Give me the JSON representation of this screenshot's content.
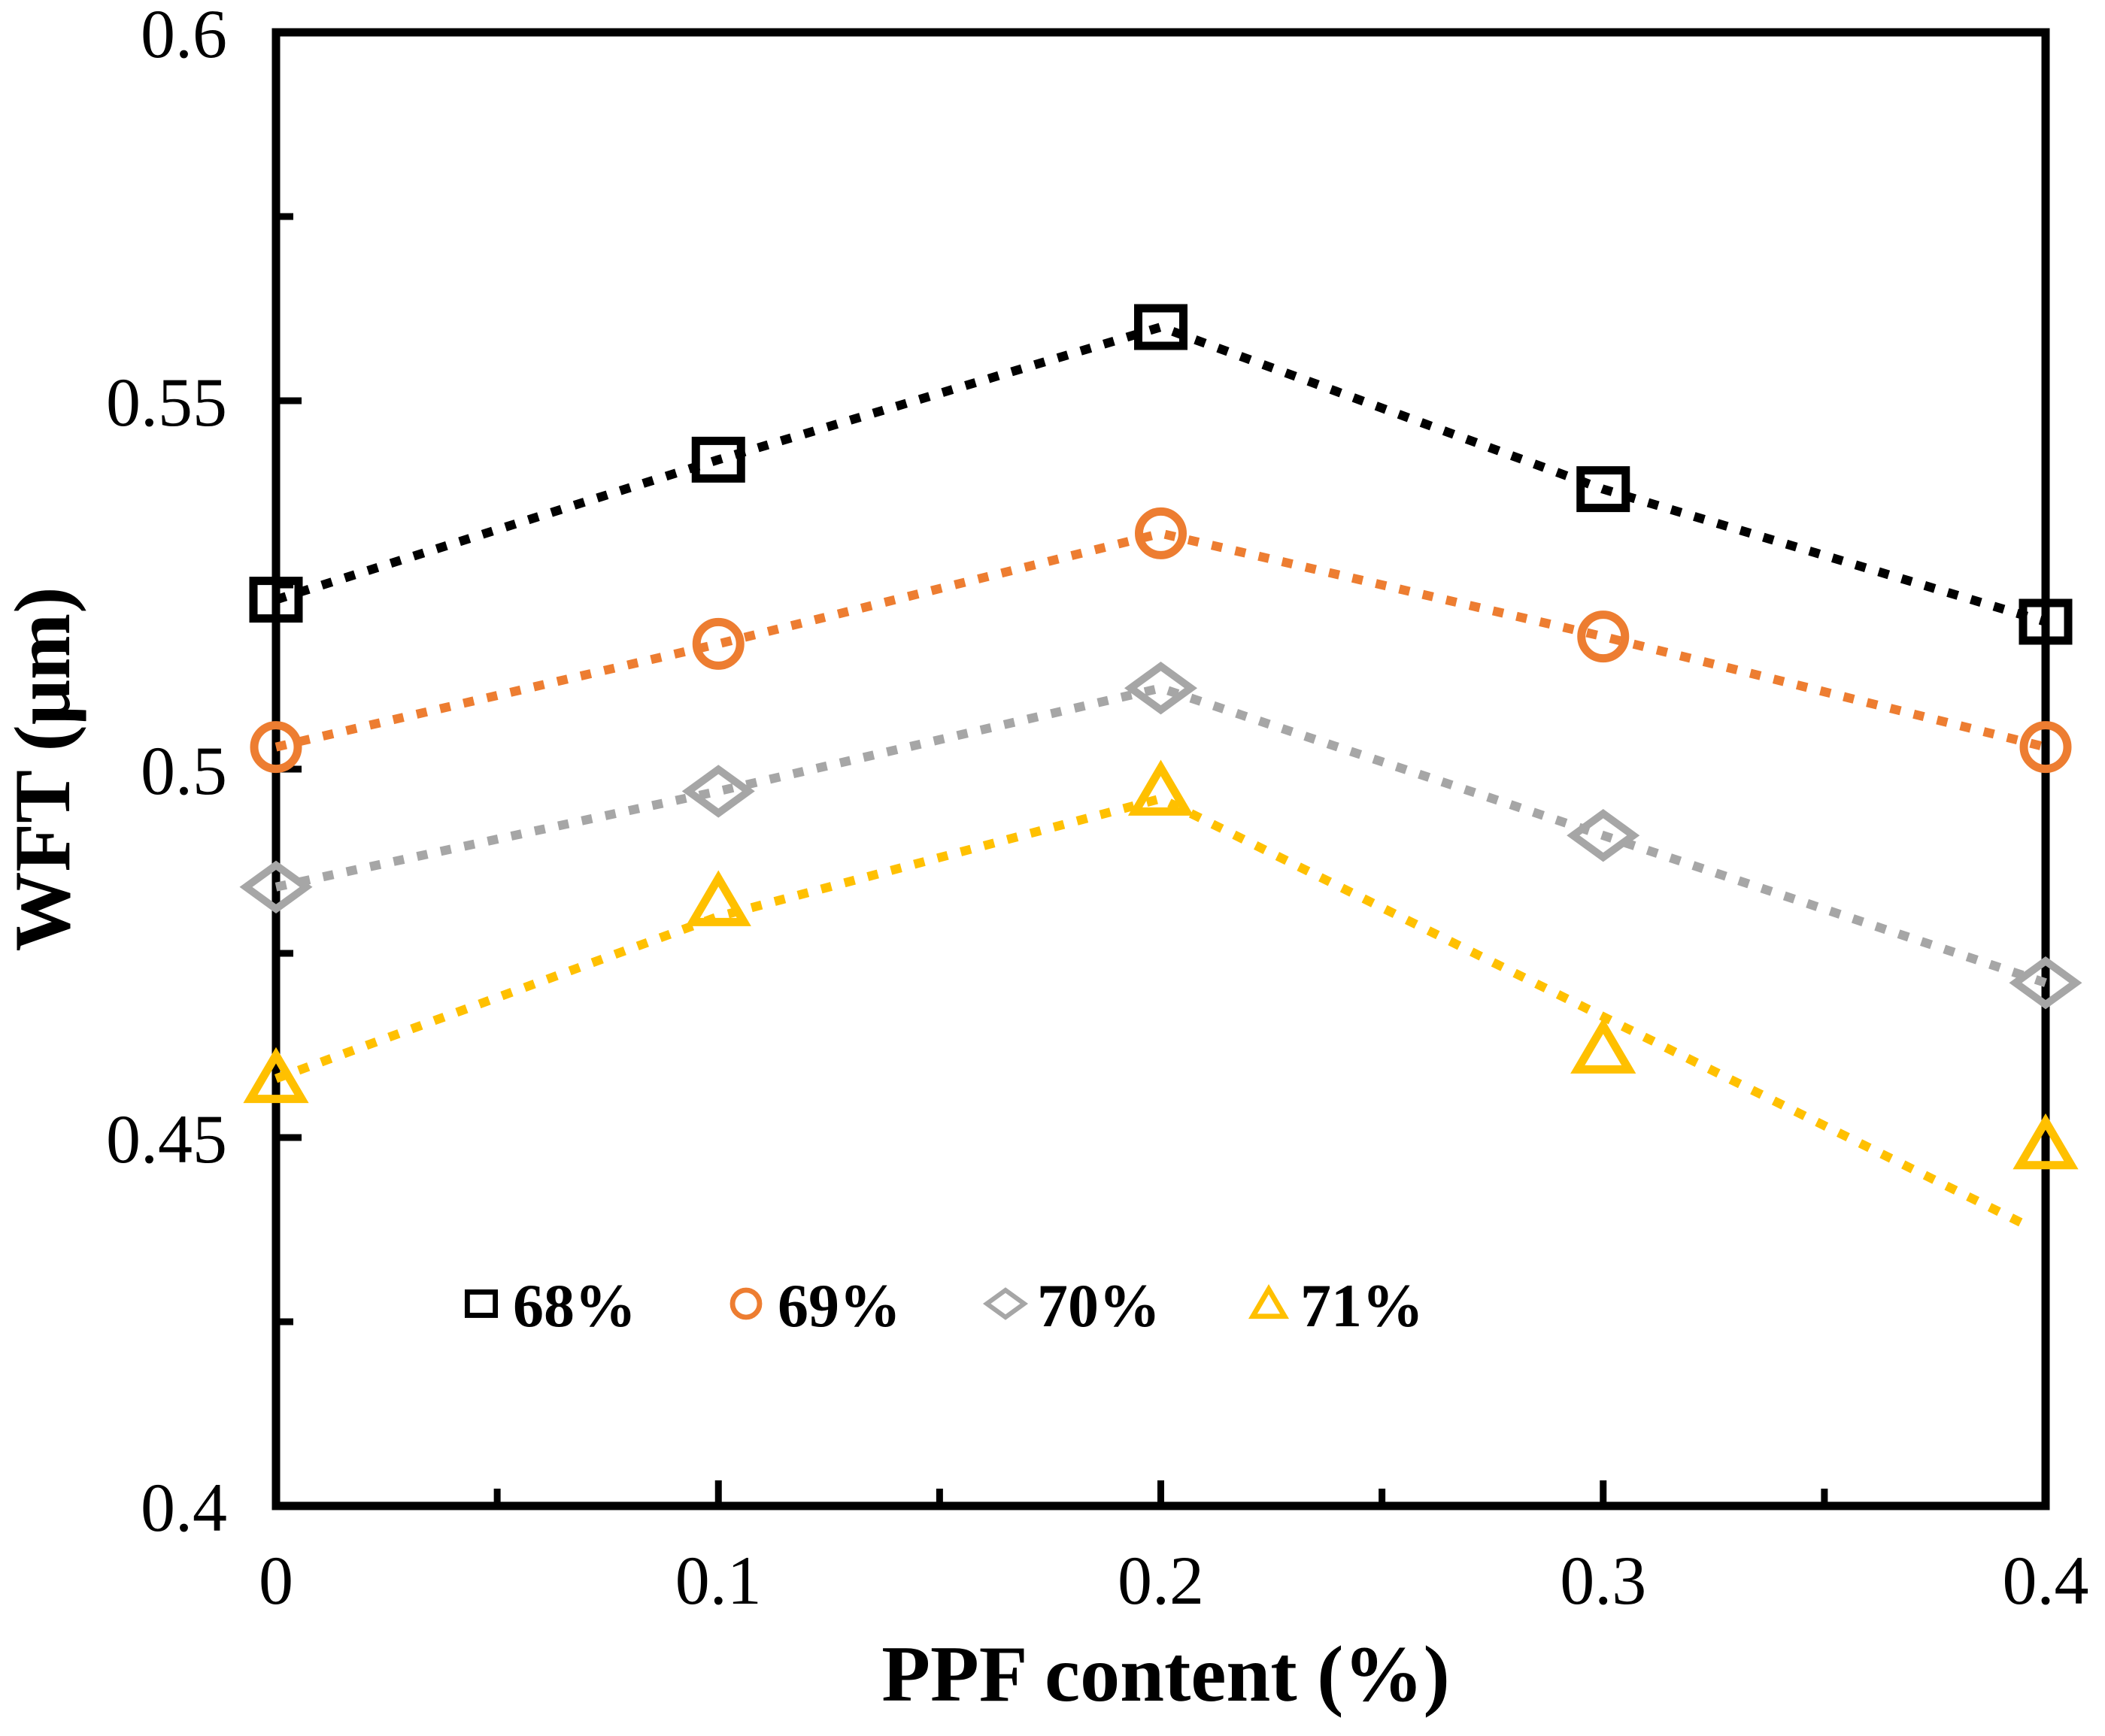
{
  "figure": {
    "background": "#ffffff",
    "border_color": "#000000"
  },
  "chart_data": {
    "type": "scatter-line",
    "title": "",
    "xlabel": "PPF content (%)",
    "ylabel": "WFT (μm)",
    "xlim": [
      0,
      0.4
    ],
    "ylim": [
      0.4,
      0.6
    ],
    "grid": false,
    "legend_position": "inside-bottom-left",
    "x": [
      0,
      0.1,
      0.2,
      0.3,
      0.4
    ],
    "x_major_ticks": [
      0,
      0.1,
      0.2,
      0.3,
      0.4
    ],
    "x_minor_ticks": [
      0.05,
      0.15,
      0.25,
      0.35
    ],
    "x_tick_labels": [
      "0",
      "0.1",
      "0.2",
      "0.3",
      "0.4"
    ],
    "y_major_ticks": [
      0.6,
      0.55,
      0.5,
      0.45,
      0.4
    ],
    "y_minor_ticks": [
      0.575,
      0.525,
      0.475,
      0.425
    ],
    "y_tick_labels": [
      "0.6",
      "0.55",
      "0.5",
      "0.45",
      "0.4"
    ],
    "line_style": "dotted",
    "series": [
      {
        "name": "68%",
        "marker": "square",
        "color": "#000000",
        "values": [
          0.523,
          0.542,
          0.56,
          0.538,
          0.52
        ]
      },
      {
        "name": "69%",
        "marker": "circle",
        "color": "#ED7D31",
        "values": [
          0.503,
          0.517,
          0.532,
          0.518,
          0.503
        ]
      },
      {
        "name": "70%",
        "marker": "diamond",
        "color": "#A6A6A6",
        "values": [
          0.484,
          0.497,
          0.511,
          0.491,
          0.471
        ]
      },
      {
        "name": "71%",
        "marker": "triangle",
        "color": "#FFC000",
        "values": [
          0.458,
          0.482,
          0.497,
          0.462,
          0.449
        ],
        "line_override": {
          "x": [
            0,
            0.1,
            0.2,
            0.396
          ],
          "y": [
            0.458,
            0.48,
            0.496,
            0.438
          ]
        }
      }
    ]
  }
}
